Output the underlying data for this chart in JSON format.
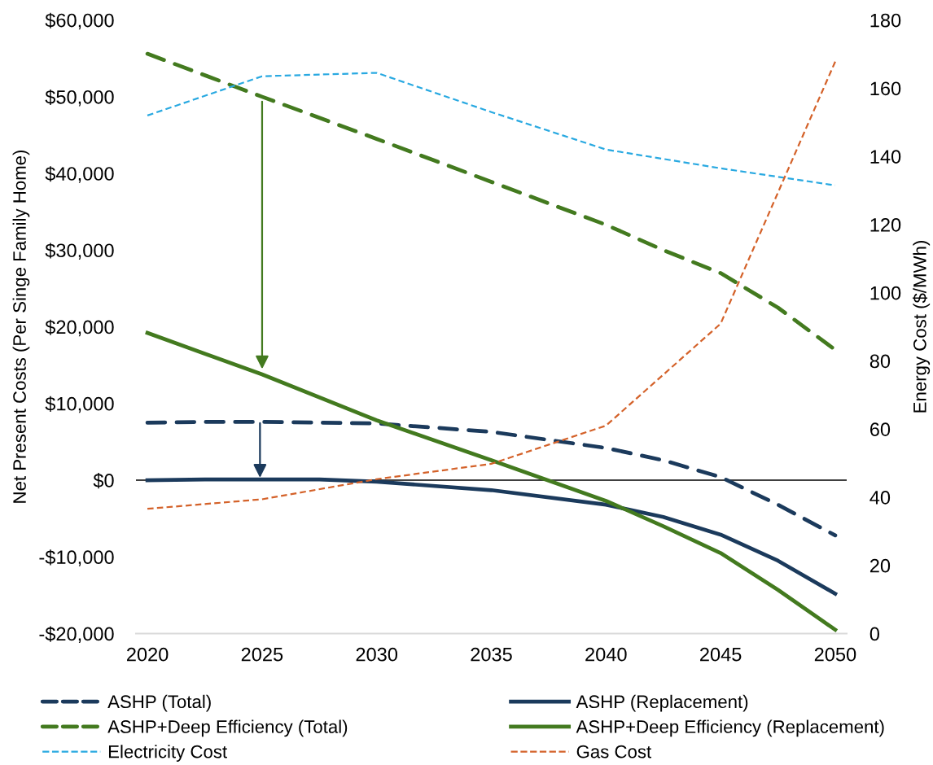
{
  "chart_data": {
    "type": "line",
    "ylabel": "Net Present Costs (Per Singe Family Home)",
    "y2label": "Energy Cost ($/MWh)",
    "xlim": [
      2019.5,
      2050.5
    ],
    "xticks": [
      2020,
      2025,
      2030,
      2035,
      2040,
      2045,
      2050
    ],
    "ylim": [
      -20000,
      60000
    ],
    "yticks": [
      {
        "value": -20000,
        "label": "-$20,000"
      },
      {
        "value": -10000,
        "label": "-$10,000"
      },
      {
        "value": 0,
        "label": "$0"
      },
      {
        "value": 10000,
        "label": "$10,000"
      },
      {
        "value": 20000,
        "label": "$20,000"
      },
      {
        "value": 30000,
        "label": "$30,000"
      },
      {
        "value": 40000,
        "label": "$40,000"
      },
      {
        "value": 50000,
        "label": "$50,000"
      },
      {
        "value": 60000,
        "label": "$60,000"
      }
    ],
    "y2lim": [
      0,
      180
    ],
    "y2ticks": [
      0,
      20,
      40,
      60,
      80,
      100,
      120,
      140,
      160,
      180
    ],
    "series": [
      {
        "name": "ASHP (Total)",
        "color": "#1b3a5c",
        "line_style": "dashed",
        "x": [
          2020,
          2022.5,
          2025,
          2027.5,
          2030,
          2035,
          2040,
          2042.5,
          2045,
          2047.5,
          2050
        ],
        "values": [
          7500,
          7600,
          7600,
          7500,
          7400,
          6300,
          4200,
          2600,
          400,
          -3200,
          -7200
        ]
      },
      {
        "name": "ASHP (Replacement)",
        "color": "#1b3a5c",
        "line_style": "solid",
        "x": [
          2020,
          2022.5,
          2025,
          2027.5,
          2030,
          2035,
          2040,
          2042.5,
          2045,
          2047.5,
          2050
        ],
        "values": [
          0,
          100,
          100,
          100,
          -200,
          -1300,
          -3200,
          -4800,
          -7100,
          -10500,
          -14800
        ]
      },
      {
        "name": "ASHP+Deep Efficiency (Total)",
        "color": "#437a1f",
        "line_style": "dashed",
        "x": [
          2020,
          2025,
          2030,
          2035,
          2040,
          2042.5,
          2045,
          2047.5,
          2050
        ],
        "values": [
          55600,
          50000,
          44500,
          38900,
          33300,
          30000,
          27000,
          22500,
          17000
        ]
      },
      {
        "name": "ASHP+Deep Efficiency (Replacement)",
        "color": "#437a1f",
        "line_style": "solid",
        "x": [
          2020,
          2025,
          2030,
          2035,
          2040,
          2042.5,
          2045,
          2047.5,
          2050
        ],
        "values": [
          19200,
          13800,
          7800,
          2600,
          -2700,
          -6000,
          -9500,
          -14300,
          -19500
        ]
      },
      {
        "name": "Electricity Cost",
        "color": "#29a9e1",
        "line_style": "dashed",
        "axis": "y2",
        "x": [
          2020,
          2025,
          2030,
          2035,
          2040,
          2045,
          2050
        ],
        "values": [
          152,
          163.5,
          164.5,
          153,
          142,
          136.5,
          131.5
        ]
      },
      {
        "name": "Gas Cost",
        "color": "#d4622a",
        "line_style": "dashed",
        "axis": "y2",
        "x": [
          2020,
          2025,
          2030,
          2035,
          2040,
          2045,
          2050
        ],
        "values": [
          36.6,
          39.4,
          45.3,
          49.8,
          61,
          90.9,
          167.8
        ]
      }
    ],
    "ref_lines": [
      {
        "axis": "y",
        "value": 0,
        "color": "#000000"
      }
    ],
    "legend": "bottom",
    "grid": false
  }
}
